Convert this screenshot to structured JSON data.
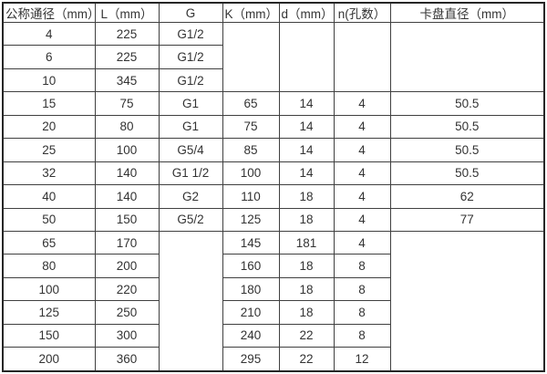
{
  "colors": {
    "border": "#404040",
    "outer_border": "#262626",
    "text": "#333333",
    "background": "#ffffff"
  },
  "table": {
    "columns": [
      "公称通径（mm）",
      "L（mm）",
      "G",
      "K（mm）",
      "d（mm）",
      "n(孔数）",
      "卡盘直径（mm）"
    ],
    "rows": [
      {
        "cells": [
          {
            "t": "4"
          },
          {
            "t": "225"
          },
          {
            "t": "G1/2"
          },
          {
            "t": "",
            "rowspan": 3
          },
          {
            "t": "",
            "rowspan": 3
          },
          {
            "t": "",
            "rowspan": 3
          },
          {
            "t": "",
            "rowspan": 3
          }
        ]
      },
      {
        "cells": [
          {
            "t": "6"
          },
          {
            "t": "225"
          },
          {
            "t": "G1/2"
          }
        ]
      },
      {
        "cells": [
          {
            "t": "10"
          },
          {
            "t": "345"
          },
          {
            "t": "G1/2"
          }
        ]
      },
      {
        "cells": [
          {
            "t": "15"
          },
          {
            "t": "75"
          },
          {
            "t": "G1"
          },
          {
            "t": "65"
          },
          {
            "t": "14"
          },
          {
            "t": "4"
          },
          {
            "t": "50.5"
          }
        ]
      },
      {
        "cells": [
          {
            "t": "20"
          },
          {
            "t": "80"
          },
          {
            "t": "G1"
          },
          {
            "t": "75"
          },
          {
            "t": "14"
          },
          {
            "t": "4"
          },
          {
            "t": "50.5"
          }
        ]
      },
      {
        "cells": [
          {
            "t": "25"
          },
          {
            "t": "100"
          },
          {
            "t": "G5/4"
          },
          {
            "t": "85"
          },
          {
            "t": "14"
          },
          {
            "t": "4"
          },
          {
            "t": "50.5"
          }
        ]
      },
      {
        "cells": [
          {
            "t": "32"
          },
          {
            "t": "140"
          },
          {
            "t": "G1 1/2"
          },
          {
            "t": "100"
          },
          {
            "t": "14"
          },
          {
            "t": "4"
          },
          {
            "t": "50.5"
          }
        ]
      },
      {
        "cells": [
          {
            "t": "40"
          },
          {
            "t": "140"
          },
          {
            "t": "G2"
          },
          {
            "t": "110"
          },
          {
            "t": "18"
          },
          {
            "t": "4"
          },
          {
            "t": "62"
          }
        ]
      },
      {
        "cells": [
          {
            "t": "50"
          },
          {
            "t": "150"
          },
          {
            "t": "G5/2"
          },
          {
            "t": "125"
          },
          {
            "t": "18"
          },
          {
            "t": "4"
          },
          {
            "t": "77"
          }
        ]
      },
      {
        "cells": [
          {
            "t": "65"
          },
          {
            "t": "170"
          },
          {
            "t": "",
            "rowspan": 6
          },
          {
            "t": "145"
          },
          {
            "t": "181"
          },
          {
            "t": "4"
          },
          {
            "t": "",
            "rowspan": 6
          }
        ]
      },
      {
        "cells": [
          {
            "t": "80"
          },
          {
            "t": "200"
          },
          {
            "t": "160"
          },
          {
            "t": "18"
          },
          {
            "t": "8"
          }
        ]
      },
      {
        "cells": [
          {
            "t": "100"
          },
          {
            "t": "220"
          },
          {
            "t": "180"
          },
          {
            "t": "18"
          },
          {
            "t": "8"
          }
        ]
      },
      {
        "cells": [
          {
            "t": "125"
          },
          {
            "t": "250"
          },
          {
            "t": "210"
          },
          {
            "t": "18"
          },
          {
            "t": "8"
          }
        ]
      },
      {
        "cells": [
          {
            "t": "150"
          },
          {
            "t": "300"
          },
          {
            "t": "240"
          },
          {
            "t": "22"
          },
          {
            "t": "8"
          }
        ]
      },
      {
        "cells": [
          {
            "t": "200"
          },
          {
            "t": "360"
          },
          {
            "t": "295"
          },
          {
            "t": "22"
          },
          {
            "t": "12"
          }
        ]
      }
    ]
  }
}
